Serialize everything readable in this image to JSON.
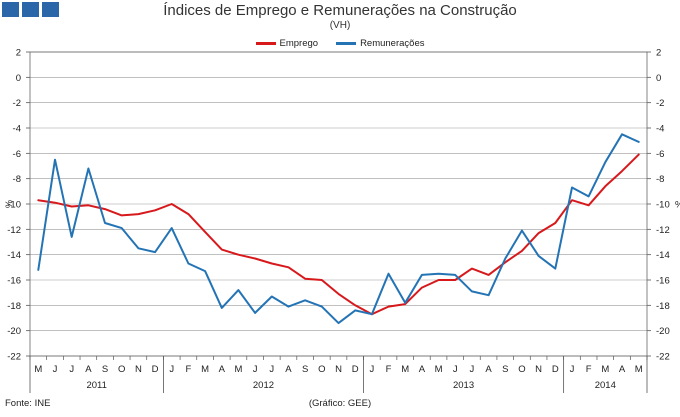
{
  "header": {
    "title": "Índices de Emprego e Remunerações na Construção",
    "subtitle": "(VH)"
  },
  "footer": {
    "source": "Fonte: INE",
    "credit": "(Gráfico: GEE)"
  },
  "chart_data": {
    "type": "line",
    "title": "Índices de Emprego e Remunerações na Construção",
    "subtitle": "(VH)",
    "ylabel_left": "%",
    "ylabel_right": "%",
    "ylim": [
      -22,
      2
    ],
    "yticks": [
      2,
      0,
      -2,
      -4,
      -6,
      -8,
      -10,
      -12,
      -14,
      -16,
      -18,
      -20,
      -22
    ],
    "legend_position": "top-center",
    "grid": true,
    "colors": {
      "Emprego": "#d7191c",
      "Remunerações": "#2474b5"
    },
    "x": [
      "M",
      "J",
      "J",
      "A",
      "S",
      "O",
      "N",
      "D",
      "J",
      "F",
      "M",
      "A",
      "M",
      "J",
      "J",
      "A",
      "S",
      "O",
      "N",
      "D",
      "J",
      "F",
      "M",
      "A",
      "M",
      "J",
      "J",
      "A",
      "S",
      "O",
      "N",
      "D",
      "J",
      "F",
      "M",
      "A",
      "M"
    ],
    "years": [
      {
        "label": "2011",
        "start": 0,
        "end": 7
      },
      {
        "label": "2012",
        "start": 8,
        "end": 19
      },
      {
        "label": "2013",
        "start": 20,
        "end": 31
      },
      {
        "label": "2014",
        "start": 32,
        "end": 36
      }
    ],
    "series": [
      {
        "name": "Emprego",
        "values": [
          -9.7,
          -9.9,
          -10.2,
          -10.1,
          -10.4,
          -10.9,
          -10.8,
          -10.5,
          -10.0,
          -10.8,
          -12.2,
          -13.6,
          -14.0,
          -14.3,
          -14.7,
          -15.0,
          -15.9,
          -16.0,
          -17.1,
          -18.0,
          -18.7,
          -18.1,
          -17.9,
          -16.6,
          -16.0,
          -16.0,
          -15.1,
          -15.6,
          -14.6,
          -13.7,
          -12.3,
          -11.5,
          -9.7,
          -10.1,
          -8.6,
          -7.4,
          -6.1
        ]
      },
      {
        "name": "Remunerações",
        "values": [
          -15.2,
          -6.5,
          -12.6,
          -7.2,
          -11.5,
          -11.9,
          -13.5,
          -13.8,
          -11.9,
          -14.7,
          -15.3,
          -18.2,
          -16.8,
          -18.6,
          -17.3,
          -18.1,
          -17.6,
          -18.1,
          -19.4,
          -18.4,
          -18.7,
          -15.5,
          -17.8,
          -15.6,
          -15.5,
          -15.6,
          -16.9,
          -17.2,
          -14.3,
          -12.1,
          -14.1,
          -15.1,
          -8.7,
          -9.4,
          -6.7,
          -4.5,
          -5.1
        ]
      }
    ]
  }
}
